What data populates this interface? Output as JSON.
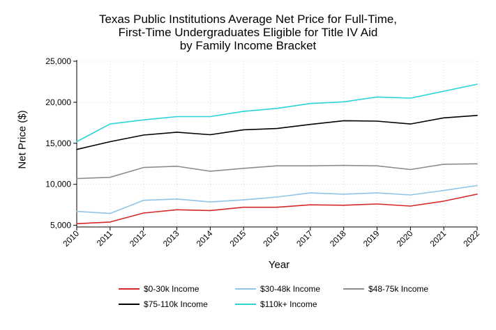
{
  "chart_data": {
    "type": "line",
    "title_lines": [
      "Texas Public Institutions Average Net Price for Full-Time,",
      "First-Time Undergraduates Eligible for Title IV Aid",
      "by Family Income Bracket"
    ],
    "xlabel": "Year",
    "ylabel": "Net Price ($)",
    "x": [
      2010,
      2011,
      2012,
      2013,
      2014,
      2015,
      2016,
      2017,
      2018,
      2019,
      2020,
      2021,
      2022
    ],
    "ylim": [
      4800,
      25000
    ],
    "yticks": [
      5000,
      10000,
      15000,
      20000,
      25000
    ],
    "ytick_labels": [
      "5,000",
      "10,000",
      "15,000",
      "20,000",
      "25,000"
    ],
    "grid": true,
    "legend_position": "bottom",
    "series": [
      {
        "name": "$0-30k Income",
        "color": "#d62728",
        "values": [
          5200,
          5400,
          6500,
          6900,
          6800,
          7200,
          7200,
          7500,
          7450,
          7600,
          7350,
          7950,
          8800
        ]
      },
      {
        "name": "$30-48k Income",
        "color": "#8fc4e6",
        "values": [
          6700,
          6450,
          8050,
          8200,
          7850,
          8100,
          8450,
          8950,
          8800,
          8950,
          8700,
          9250,
          9850
        ]
      },
      {
        "name": "$48-75k Income",
        "color": "#8c8c8c",
        "values": [
          10700,
          10850,
          12050,
          12200,
          11600,
          11950,
          12250,
          12250,
          12300,
          12250,
          11800,
          12450,
          12500
        ]
      },
      {
        "name": "$75-110k Income",
        "color": "#000000",
        "values": [
          14250,
          15200,
          16000,
          16350,
          16050,
          16650,
          16800,
          17300,
          17750,
          17700,
          17350,
          18100,
          18400
        ]
      },
      {
        "name": "$110k+ Income",
        "color": "#2bd3d8",
        "values": [
          15200,
          17350,
          17850,
          18250,
          18250,
          18900,
          19250,
          19850,
          20050,
          20650,
          20500,
          21350,
          22200
        ]
      }
    ]
  }
}
